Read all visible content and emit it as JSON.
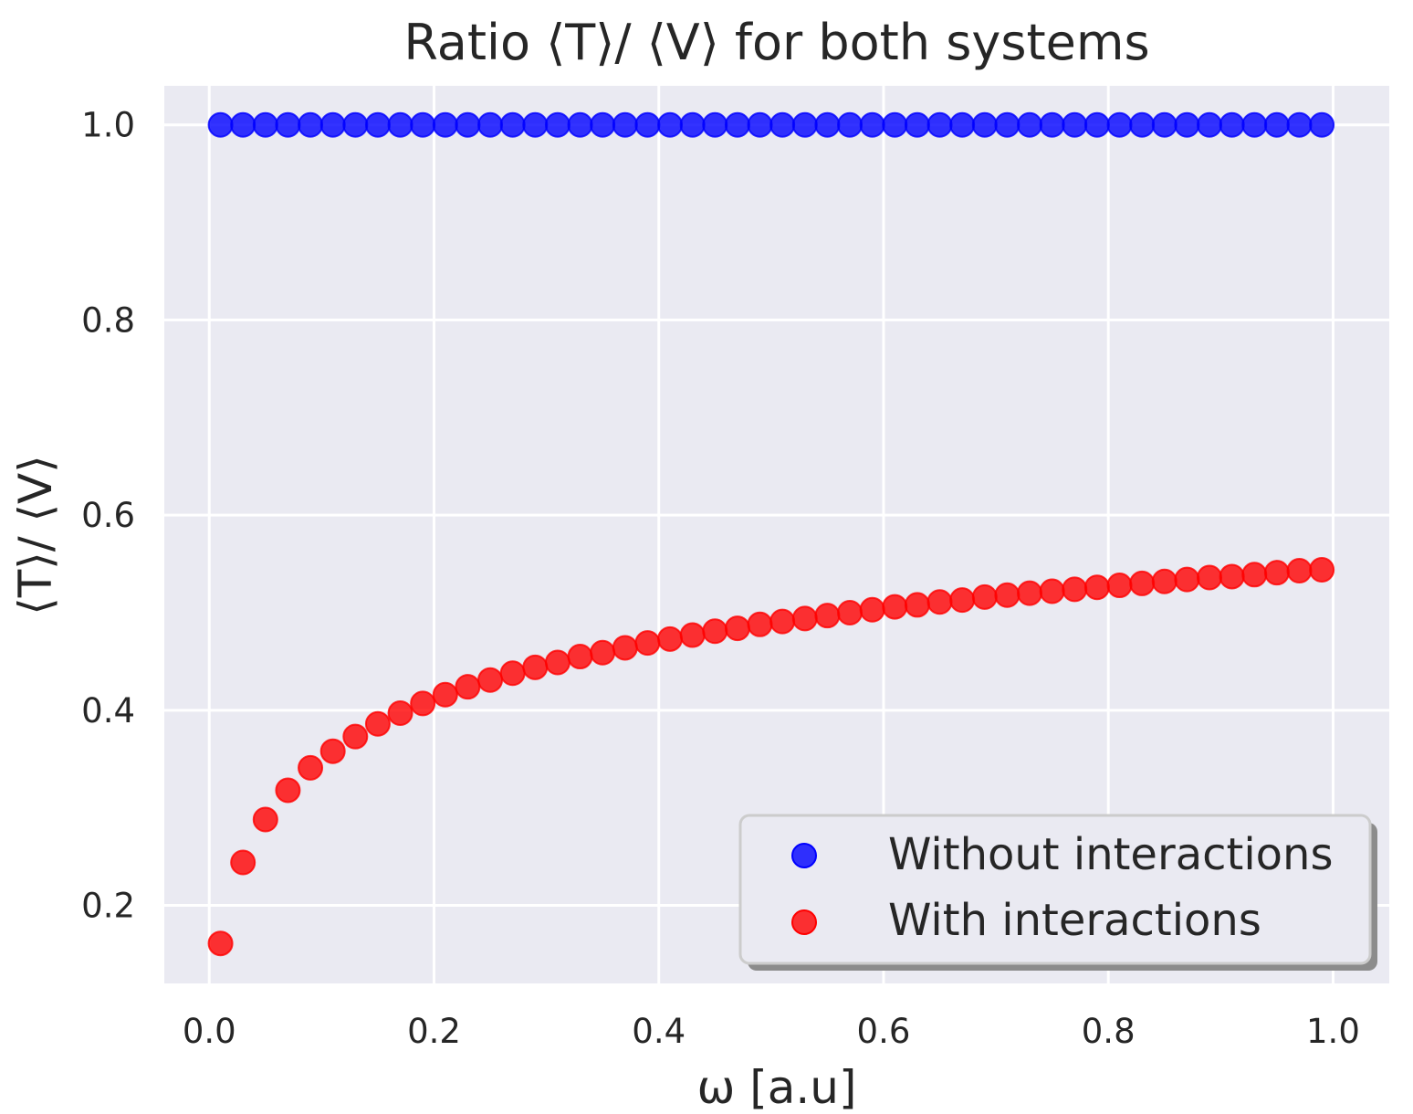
{
  "chart_data": {
    "type": "scatter",
    "title": "Ratio ⟨T⟩/ ⟨V⟩ for both systems",
    "xlabel": "ω [a.u]",
    "ylabel": "⟨T⟩/ ⟨V⟩",
    "xlim": [
      -0.04,
      1.05
    ],
    "ylim": [
      0.12,
      1.04
    ],
    "xticks": [
      "0.0",
      "0.2",
      "0.4",
      "0.6",
      "0.8",
      "1.0"
    ],
    "yticks": [
      "0.2",
      "0.4",
      "0.6",
      "0.8",
      "1.0"
    ],
    "grid": true,
    "legend_position": "lower-right",
    "series": [
      {
        "name": "Without interactions",
        "color": "#0000ff",
        "x": [
          0.01,
          0.03,
          0.05,
          0.07,
          0.09,
          0.11,
          0.13,
          0.15,
          0.17,
          0.19,
          0.21,
          0.23,
          0.25,
          0.27,
          0.29,
          0.31,
          0.33,
          0.35,
          0.37,
          0.39,
          0.41,
          0.43,
          0.45,
          0.47,
          0.49,
          0.51,
          0.53,
          0.55,
          0.57,
          0.59,
          0.61,
          0.63,
          0.65,
          0.67,
          0.69,
          0.71,
          0.73,
          0.75,
          0.77,
          0.79,
          0.81,
          0.83,
          0.85,
          0.87,
          0.89,
          0.91,
          0.93,
          0.95,
          0.97,
          0.99
        ],
        "y": [
          1.0,
          1.0,
          1.0,
          1.0,
          1.0,
          1.0,
          1.0,
          1.0,
          1.0,
          1.0,
          1.0,
          1.0,
          1.0,
          1.0,
          1.0,
          1.0,
          1.0,
          1.0,
          1.0,
          1.0,
          1.0,
          1.0,
          1.0,
          1.0,
          1.0,
          1.0,
          1.0,
          1.0,
          1.0,
          1.0,
          1.0,
          1.0,
          1.0,
          1.0,
          1.0,
          1.0,
          1.0,
          1.0,
          1.0,
          1.0,
          1.0,
          1.0,
          1.0,
          1.0,
          1.0,
          1.0,
          1.0,
          1.0,
          1.0,
          1.0
        ]
      },
      {
        "name": "With interactions",
        "color": "#ff0000",
        "x": [
          0.01,
          0.03,
          0.05,
          0.07,
          0.09,
          0.11,
          0.13,
          0.15,
          0.17,
          0.19,
          0.21,
          0.23,
          0.25,
          0.27,
          0.29,
          0.31,
          0.33,
          0.35,
          0.37,
          0.39,
          0.41,
          0.43,
          0.45,
          0.47,
          0.49,
          0.51,
          0.53,
          0.55,
          0.57,
          0.59,
          0.61,
          0.63,
          0.65,
          0.67,
          0.69,
          0.71,
          0.73,
          0.75,
          0.77,
          0.79,
          0.81,
          0.83,
          0.85,
          0.87,
          0.89,
          0.91,
          0.93,
          0.95,
          0.97,
          0.99
        ],
        "y": [
          0.161,
          0.244,
          0.288,
          0.318,
          0.341,
          0.358,
          0.373,
          0.386,
          0.397,
          0.407,
          0.416,
          0.424,
          0.431,
          0.438,
          0.444,
          0.449,
          0.455,
          0.459,
          0.464,
          0.469,
          0.473,
          0.477,
          0.481,
          0.484,
          0.488,
          0.491,
          0.494,
          0.497,
          0.5,
          0.503,
          0.506,
          0.508,
          0.511,
          0.513,
          0.516,
          0.518,
          0.52,
          0.522,
          0.524,
          0.526,
          0.528,
          0.53,
          0.532,
          0.534,
          0.536,
          0.537,
          0.539,
          0.541,
          0.543,
          0.544
        ]
      }
    ]
  }
}
